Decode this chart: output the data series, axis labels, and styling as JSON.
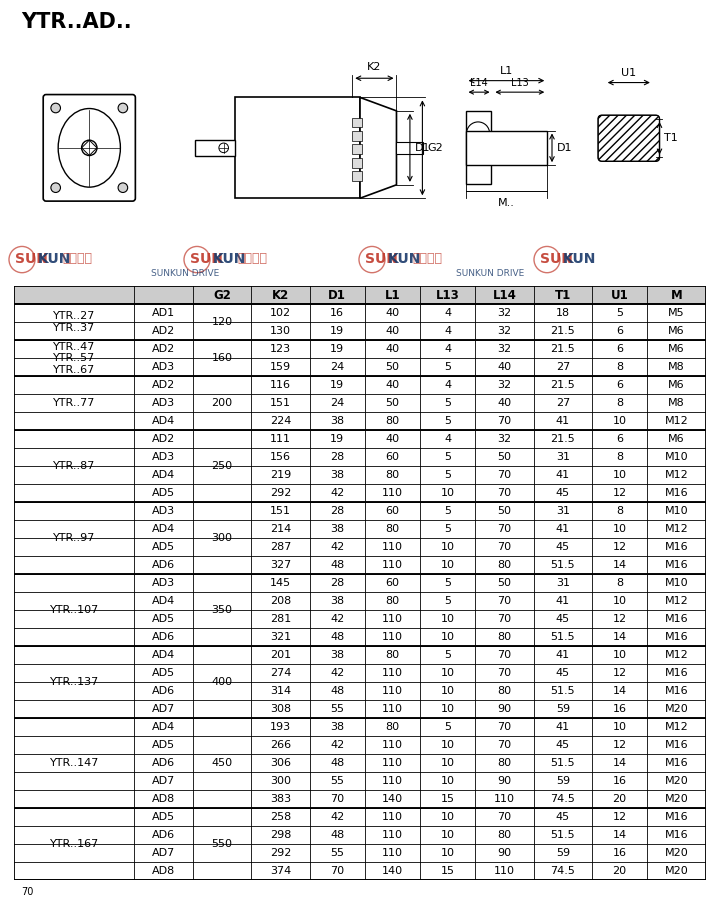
{
  "title": "YTR..AD..",
  "header": [
    "",
    "",
    "G2",
    "K2",
    "D1",
    "L1",
    "L13",
    "L14",
    "T1",
    "U1",
    "M"
  ],
  "rows": [
    [
      "YTR..27\nYTR..37",
      "AD1",
      "120",
      "102",
      "16",
      "40",
      "4",
      "32",
      "18",
      "5",
      "M5"
    ],
    [
      "YTR..27\nYTR..37",
      "AD2",
      "120",
      "130",
      "19",
      "40",
      "4",
      "32",
      "21.5",
      "6",
      "M6"
    ],
    [
      "YTR..47\nYTR..57\nYTR..67",
      "AD2",
      "160",
      "123",
      "19",
      "40",
      "4",
      "32",
      "21.5",
      "6",
      "M6"
    ],
    [
      "YTR..47\nYTR..57\nYTR..67",
      "AD3",
      "160",
      "159",
      "24",
      "50",
      "5",
      "40",
      "27",
      "8",
      "M8"
    ],
    [
      "YTR..77",
      "AD2",
      "200",
      "116",
      "19",
      "40",
      "4",
      "32",
      "21.5",
      "6",
      "M6"
    ],
    [
      "YTR..77",
      "AD3",
      "200",
      "151",
      "24",
      "50",
      "5",
      "40",
      "27",
      "8",
      "M8"
    ],
    [
      "YTR..77",
      "AD4",
      "200",
      "224",
      "38",
      "80",
      "5",
      "70",
      "41",
      "10",
      "M12"
    ],
    [
      "YTR..87",
      "AD2",
      "250",
      "111",
      "19",
      "40",
      "4",
      "32",
      "21.5",
      "6",
      "M6"
    ],
    [
      "YTR..87",
      "AD3",
      "250",
      "156",
      "28",
      "60",
      "5",
      "50",
      "31",
      "8",
      "M10"
    ],
    [
      "YTR..87",
      "AD4",
      "250",
      "219",
      "38",
      "80",
      "5",
      "70",
      "41",
      "10",
      "M12"
    ],
    [
      "YTR..87",
      "AD5",
      "250",
      "292",
      "42",
      "110",
      "10",
      "70",
      "45",
      "12",
      "M16"
    ],
    [
      "YTR..97",
      "AD3",
      "300",
      "151",
      "28",
      "60",
      "5",
      "50",
      "31",
      "8",
      "M10"
    ],
    [
      "YTR..97",
      "AD4",
      "300",
      "214",
      "38",
      "80",
      "5",
      "70",
      "41",
      "10",
      "M12"
    ],
    [
      "YTR..97",
      "AD5",
      "300",
      "287",
      "42",
      "110",
      "10",
      "70",
      "45",
      "12",
      "M16"
    ],
    [
      "YTR..97",
      "AD6",
      "300",
      "327",
      "48",
      "110",
      "10",
      "80",
      "51.5",
      "14",
      "M16"
    ],
    [
      "YTR..107",
      "AD3",
      "350",
      "145",
      "28",
      "60",
      "5",
      "50",
      "31",
      "8",
      "M10"
    ],
    [
      "YTR..107",
      "AD4",
      "350",
      "208",
      "38",
      "80",
      "5",
      "70",
      "41",
      "10",
      "M12"
    ],
    [
      "YTR..107",
      "AD5",
      "350",
      "281",
      "42",
      "110",
      "10",
      "70",
      "45",
      "12",
      "M16"
    ],
    [
      "YTR..107",
      "AD6",
      "350",
      "321",
      "48",
      "110",
      "10",
      "80",
      "51.5",
      "14",
      "M16"
    ],
    [
      "YTR..137",
      "AD4",
      "400",
      "201",
      "38",
      "80",
      "5",
      "70",
      "41",
      "10",
      "M12"
    ],
    [
      "YTR..137",
      "AD5",
      "400",
      "274",
      "42",
      "110",
      "10",
      "70",
      "45",
      "12",
      "M16"
    ],
    [
      "YTR..137",
      "AD6",
      "400",
      "314",
      "48",
      "110",
      "10",
      "80",
      "51.5",
      "14",
      "M16"
    ],
    [
      "YTR..137",
      "AD7",
      "400",
      "308",
      "55",
      "110",
      "10",
      "90",
      "59",
      "16",
      "M20"
    ],
    [
      "YTR..147",
      "AD4",
      "450",
      "193",
      "38",
      "80",
      "5",
      "70",
      "41",
      "10",
      "M12"
    ],
    [
      "YTR..147",
      "AD5",
      "450",
      "266",
      "42",
      "110",
      "10",
      "70",
      "45",
      "12",
      "M16"
    ],
    [
      "YTR..147",
      "AD6",
      "450",
      "306",
      "48",
      "110",
      "10",
      "80",
      "51.5",
      "14",
      "M16"
    ],
    [
      "YTR..147",
      "AD7",
      "450",
      "300",
      "55",
      "110",
      "10",
      "90",
      "59",
      "16",
      "M20"
    ],
    [
      "YTR..147",
      "AD8",
      "450",
      "383",
      "70",
      "140",
      "15",
      "110",
      "74.5",
      "20",
      "M20"
    ],
    [
      "YTR..167",
      "AD5",
      "550",
      "258",
      "42",
      "110",
      "10",
      "70",
      "45",
      "12",
      "M16"
    ],
    [
      "YTR..167",
      "AD6",
      "550",
      "298",
      "48",
      "110",
      "10",
      "80",
      "51.5",
      "14",
      "M16"
    ],
    [
      "YTR..167",
      "AD7",
      "550",
      "292",
      "55",
      "110",
      "10",
      "90",
      "59",
      "16",
      "M20"
    ],
    [
      "YTR..167",
      "AD8",
      "550",
      "374",
      "70",
      "140",
      "15",
      "110",
      "74.5",
      "20",
      "M20"
    ]
  ],
  "group_spans": [
    {
      "label": "YTR..27\nYTR..37",
      "start": 0,
      "end": 1
    },
    {
      "label": "YTR..47\nYTR..57\nYTR..67",
      "start": 2,
      "end": 3
    },
    {
      "label": "YTR..77",
      "start": 4,
      "end": 6
    },
    {
      "label": "YTR..87",
      "start": 7,
      "end": 10
    },
    {
      "label": "YTR..97",
      "start": 11,
      "end": 14
    },
    {
      "label": "YTR..107",
      "start": 15,
      "end": 18
    },
    {
      "label": "YTR..137",
      "start": 19,
      "end": 22
    },
    {
      "label": "YTR..147",
      "start": 23,
      "end": 27
    },
    {
      "label": "YTR..167",
      "start": 28,
      "end": 31
    }
  ],
  "g2_spans": [
    {
      "label": "120",
      "start": 0,
      "end": 1
    },
    {
      "label": "160",
      "start": 2,
      "end": 3
    },
    {
      "label": "200",
      "start": 4,
      "end": 6
    },
    {
      "label": "250",
      "start": 7,
      "end": 10
    },
    {
      "label": "300",
      "start": 11,
      "end": 14
    },
    {
      "label": "350",
      "start": 15,
      "end": 18
    },
    {
      "label": "400",
      "start": 19,
      "end": 22
    },
    {
      "label": "450",
      "start": 23,
      "end": 27
    },
    {
      "label": "550",
      "start": 28,
      "end": 31
    }
  ],
  "bg_color": "#ffffff",
  "text_color": "#000000",
  "title_fontsize": 15,
  "header_fontsize": 8.5,
  "cell_fontsize": 8.0
}
